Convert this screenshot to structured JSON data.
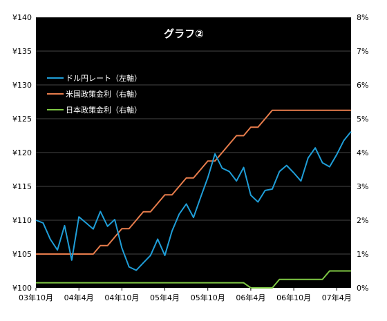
{
  "chart_data": {
    "type": "line",
    "title": "グラフ②",
    "background": "#000000",
    "grid": true,
    "grid_color": "#ffffff",
    "legend_placement": "top-left",
    "x_tick_labels": [
      "03年10月",
      "04年4月",
      "04年10月",
      "05年4月",
      "05年10月",
      "06年4月",
      "06年10月",
      "07年4月"
    ],
    "x_tick_index": [
      0,
      6,
      12,
      18,
      24,
      30,
      36,
      42
    ],
    "y_left": {
      "range": [
        100,
        140
      ],
      "ticks": [
        100,
        105,
        110,
        115,
        120,
        125,
        130,
        135,
        140
      ],
      "tick_labels": [
        "¥100",
        "¥105",
        "¥110",
        "¥115",
        "¥120",
        "¥125",
        "¥130",
        "¥135",
        "¥140"
      ]
    },
    "y_right": {
      "range": [
        0,
        8
      ],
      "ticks": [
        0,
        1,
        2,
        3,
        4,
        5,
        6,
        7,
        8
      ],
      "tick_labels": [
        "0%",
        "1%",
        "2%",
        "3%",
        "4%",
        "5%",
        "6%",
        "7%",
        "8%"
      ]
    },
    "series": [
      {
        "name": "ドル円レート（左軸）",
        "axis": "left",
        "color": "#1f9ed8",
        "values": [
          110.0,
          109.6,
          107.2,
          105.6,
          109.2,
          104.1,
          110.5,
          109.6,
          108.7,
          111.3,
          109.1,
          110.1,
          105.9,
          103.1,
          102.6,
          103.7,
          104.8,
          107.2,
          104.8,
          108.4,
          110.9,
          112.4,
          110.4,
          113.4,
          116.3,
          119.8,
          117.7,
          117.2,
          115.8,
          117.8,
          113.7,
          112.7,
          114.4,
          114.6,
          117.2,
          118.1,
          117.0,
          115.8,
          119.2,
          120.7,
          118.5,
          117.9,
          119.7,
          121.8,
          123.1
        ]
      },
      {
        "name": "米国政策金利（右軸）",
        "axis": "right",
        "color": "#e87d4c",
        "values": [
          1.0,
          1.0,
          1.0,
          1.0,
          1.0,
          1.0,
          1.0,
          1.0,
          1.0,
          1.25,
          1.25,
          1.5,
          1.75,
          1.75,
          2.0,
          2.25,
          2.25,
          2.5,
          2.75,
          2.75,
          3.0,
          3.25,
          3.25,
          3.5,
          3.75,
          3.75,
          4.0,
          4.25,
          4.5,
          4.5,
          4.75,
          4.75,
          5.0,
          5.25,
          5.25,
          5.25,
          5.25,
          5.25,
          5.25,
          5.25,
          5.25,
          5.25,
          5.25,
          5.25,
          5.25
        ]
      },
      {
        "name": "日本政策金利（右軸）",
        "axis": "right",
        "color": "#7fc844",
        "values": [
          0.15,
          0.15,
          0.15,
          0.15,
          0.15,
          0.15,
          0.15,
          0.15,
          0.15,
          0.15,
          0.15,
          0.15,
          0.15,
          0.15,
          0.15,
          0.15,
          0.15,
          0.15,
          0.15,
          0.15,
          0.15,
          0.15,
          0.15,
          0.15,
          0.15,
          0.15,
          0.15,
          0.15,
          0.15,
          0.15,
          0.0,
          0.0,
          0.0,
          0.0,
          0.25,
          0.25,
          0.25,
          0.25,
          0.25,
          0.25,
          0.25,
          0.5,
          0.5,
          0.5,
          0.5
        ]
      }
    ]
  }
}
